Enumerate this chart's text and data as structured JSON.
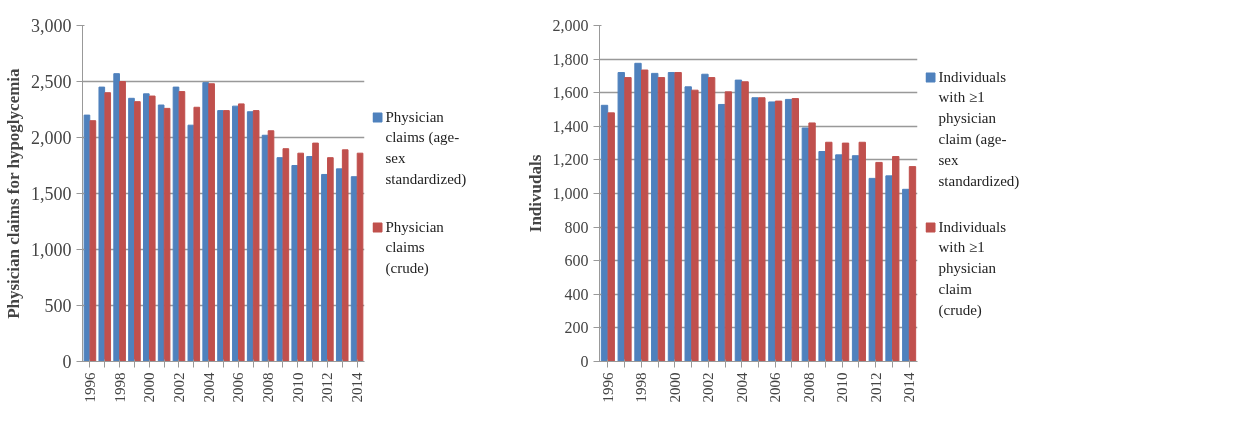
{
  "chart_data": [
    {
      "type": "bar",
      "ylabel": "Physician claims for hypoglycemia",
      "categories": [
        "1996",
        null,
        "1998",
        null,
        "2000",
        null,
        "2002",
        null,
        "2004",
        null,
        "2006",
        null,
        "2008",
        null,
        "2010",
        null,
        "2012",
        null,
        "2014"
      ],
      "series": [
        {
          "name": "Physician claims (age-sex standardized)",
          "color": "#4f81bd",
          "values": [
            2200,
            2450,
            2570,
            2350,
            2390,
            2290,
            2450,
            2110,
            2490,
            2240,
            2280,
            2230,
            2020,
            1820,
            1750,
            1830,
            1670,
            1720,
            1650
          ]
        },
        {
          "name": "Physician claims (crude)",
          "color": "#c0504d",
          "values": [
            2150,
            2400,
            2500,
            2320,
            2370,
            2260,
            2410,
            2270,
            2480,
            2240,
            2300,
            2240,
            2060,
            1900,
            1860,
            1950,
            1820,
            1890,
            1860
          ]
        }
      ],
      "ylim": [
        0,
        3000
      ],
      "yticks": [
        0,
        500,
        {
          "value": 1000,
          "label": "1,000"
        },
        {
          "value": 1500,
          "label": "1,500"
        },
        {
          "value": 2000,
          "label": "2,000"
        },
        {
          "value": 2500,
          "label": "2,500"
        },
        {
          "value": 3000,
          "label": "3,000"
        }
      ],
      "grid": "y",
      "legend": "right"
    },
    {
      "type": "bar",
      "ylabel": "Indivudals",
      "categories": [
        "1996",
        null,
        "1998",
        null,
        "2000",
        null,
        "2002",
        null,
        "2004",
        null,
        "2006",
        null,
        "2008",
        null,
        "2010",
        null,
        "2012",
        null,
        "2014"
      ],
      "series": [
        {
          "name": "Individuals with ≥1 physician claim (age-sex standardized)",
          "color": "#4f81bd",
          "values": [
            1525,
            1720,
            1775,
            1715,
            1720,
            1635,
            1710,
            1530,
            1675,
            1570,
            1545,
            1560,
            1390,
            1250,
            1230,
            1225,
            1090,
            1105,
            1025
          ]
        },
        {
          "name": "Individuals with ≥1 physician claim (crude)",
          "color": "#c0504d",
          "values": [
            1480,
            1690,
            1735,
            1690,
            1720,
            1615,
            1690,
            1605,
            1665,
            1570,
            1550,
            1565,
            1420,
            1305,
            1300,
            1305,
            1185,
            1220,
            1160
          ]
        }
      ],
      "ylim": [
        0,
        2000
      ],
      "yticks": [
        0,
        200,
        400,
        600,
        800,
        {
          "value": 1000,
          "label": "1,000"
        },
        {
          "value": 1200,
          "label": "1,200"
        },
        {
          "value": 1400,
          "label": "1,400"
        },
        {
          "value": 1600,
          "label": "1,600"
        },
        {
          "value": 1800,
          "label": "1,800"
        },
        {
          "value": 2000,
          "label": "2,000"
        }
      ],
      "grid": "y",
      "legend": "right"
    }
  ]
}
